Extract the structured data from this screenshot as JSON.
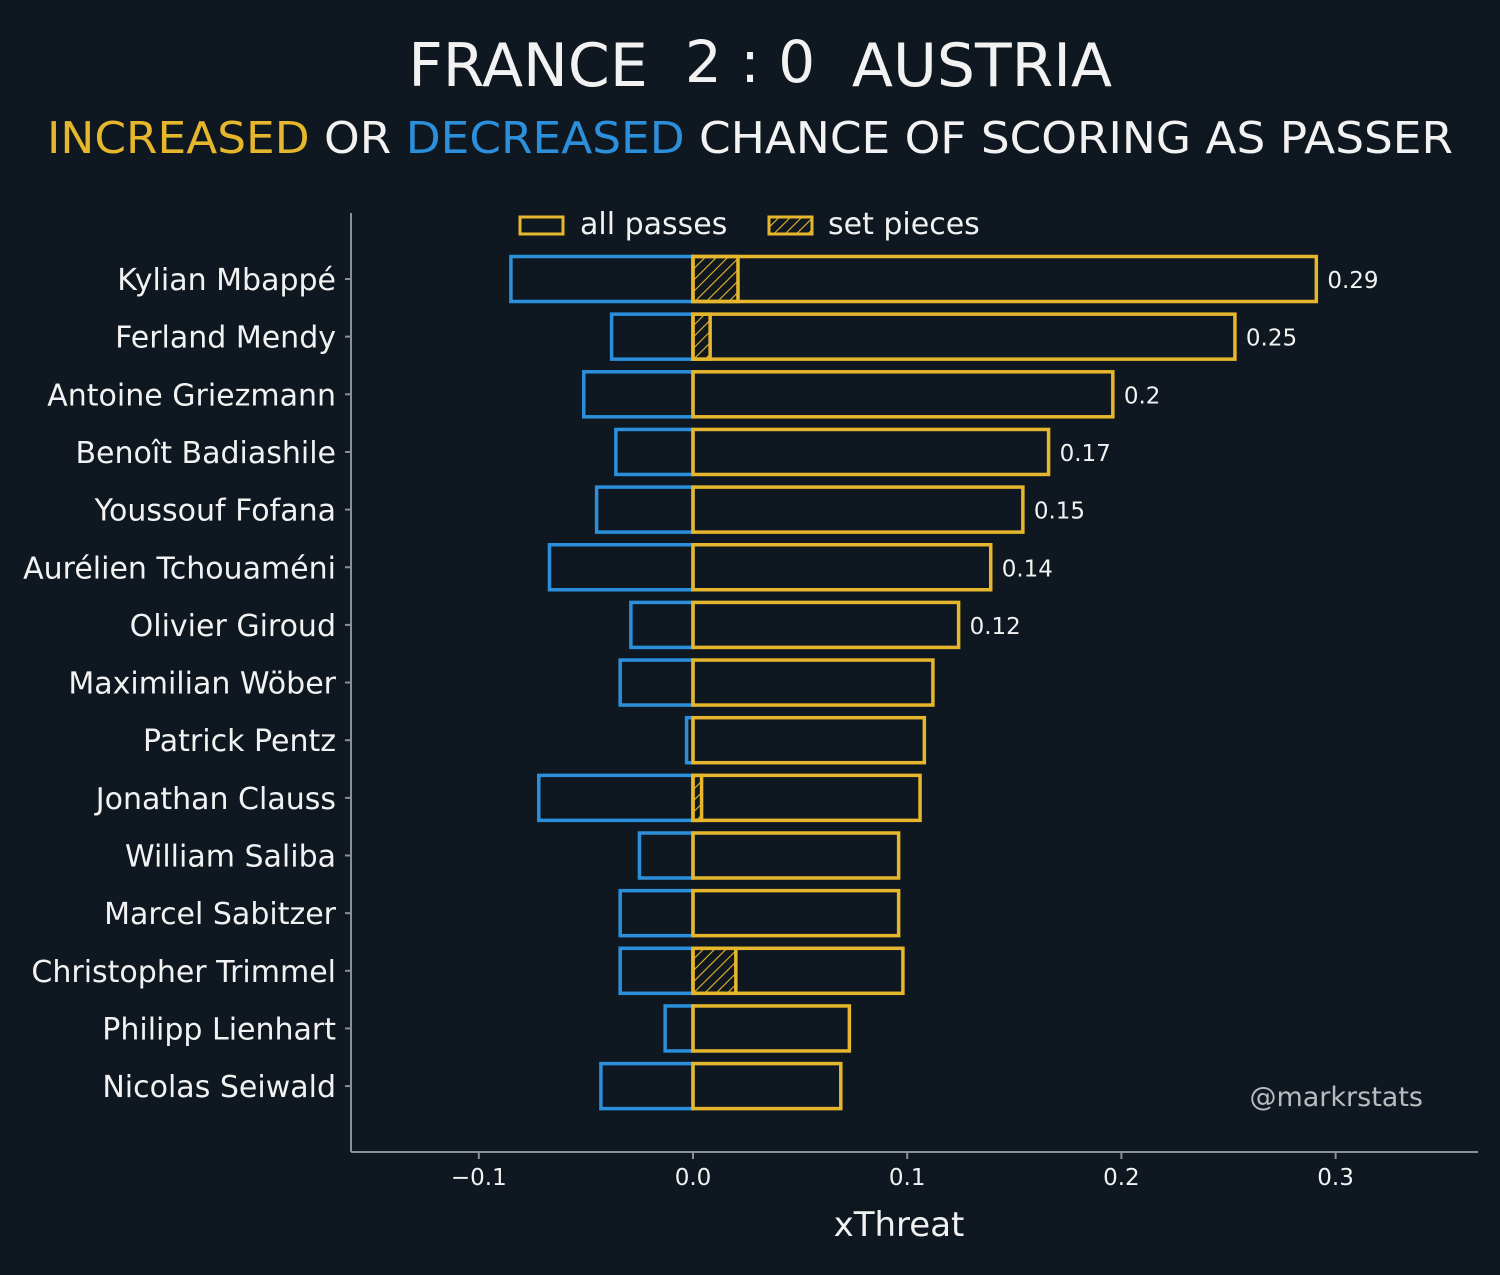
{
  "title": {
    "team_home": "FRANCE",
    "score": "2 : 0",
    "team_away": "AUSTRIA"
  },
  "subtitle": {
    "part_increased": "INCREASED",
    "part_or": " OR ",
    "part_decreased": "DECREASED",
    "part_rest": " CHANCE OF SCORING AS PASSER"
  },
  "colors": {
    "background": "#0f1820",
    "increased": "#e6b72c",
    "decreased": "#2b8fdb",
    "text": "#f2f2f2",
    "axis": "#8a9095",
    "watermark": "#b9bcbf"
  },
  "legend": {
    "all_passes": "all passes",
    "set_pieces": "set pieces"
  },
  "watermark": "@markrstats",
  "chart_data": {
    "type": "bar",
    "orientation": "horizontal",
    "xlabel": "xThreat",
    "xlim": [
      -0.16,
      0.365
    ],
    "xticks": [
      -0.1,
      0.0,
      0.1,
      0.2,
      0.3
    ],
    "xtick_labels": [
      "−0.1",
      "0.0",
      "0.1",
      "0.2",
      "0.3"
    ],
    "categories": [
      "Kylian Mbappé",
      "Ferland Mendy",
      "Antoine Griezmann",
      "Benoît Badiashile",
      "Youssouf Fofana",
      "Aurélien Tchouaméni",
      "Olivier Giroud",
      "Maximilian Wöber",
      "Patrick Pentz",
      "Jonathan Clauss",
      "William Saliba",
      "Marcel Sabitzer",
      "Christopher Trimmel",
      "Philipp Lienhart",
      "Nicolas Seiwald"
    ],
    "series": [
      {
        "name": "increased (all passes)",
        "values": [
          0.291,
          0.253,
          0.196,
          0.166,
          0.154,
          0.139,
          0.124,
          0.112,
          0.108,
          0.106,
          0.096,
          0.096,
          0.098,
          0.073,
          0.069
        ]
      },
      {
        "name": "decreased (all passes)",
        "values": [
          -0.085,
          -0.038,
          -0.051,
          -0.036,
          -0.045,
          -0.067,
          -0.029,
          -0.034,
          -0.003,
          -0.072,
          -0.025,
          -0.034,
          -0.034,
          -0.013,
          -0.043
        ]
      },
      {
        "name": "increased (set pieces)",
        "values": [
          0.021,
          0.008,
          0.0,
          0.0,
          0.0,
          0.0,
          0.0,
          0.0,
          0.0,
          0.004,
          0.0,
          0.0,
          0.02,
          0.0,
          0.0
        ]
      }
    ],
    "value_labels": [
      "0.29",
      "0.25",
      "0.2",
      "0.17",
      "0.15",
      "0.14",
      "0.12",
      "",
      "",
      "",
      "",
      "",
      "",
      "",
      ""
    ]
  }
}
